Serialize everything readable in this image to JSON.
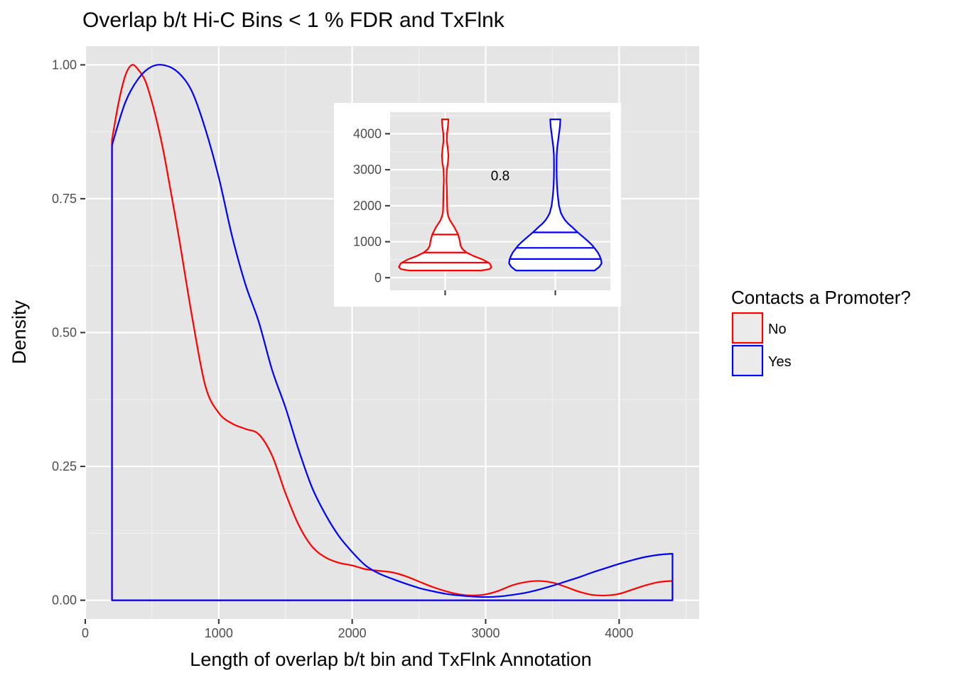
{
  "chart_data": [
    {
      "type": "line",
      "subtype": "density",
      "title": "Overlap b/t Hi-C Bins < 1 % FDR and TxFlnk",
      "xlabel": "Length of overlap b/t bin and TxFlnk Annotation",
      "ylabel": "Density",
      "xlim": [
        0,
        4600
      ],
      "ylim": [
        -0.035,
        1.035
      ],
      "x_ticks": [
        0,
        1000,
        2000,
        3000,
        4000
      ],
      "y_ticks": [
        0.0,
        0.25,
        0.5,
        0.75,
        1.0
      ],
      "y_tick_labels": [
        "0.00",
        "0.25",
        "0.50",
        "0.75",
        "1.00"
      ],
      "grid": true,
      "background": "#e5e5e5",
      "legend": {
        "title": "Contacts a Promoter?",
        "position": "right",
        "items": [
          {
            "label": "No",
            "color": "#ff0000"
          },
          {
            "label": "Yes",
            "color": "#0000ff"
          }
        ]
      },
      "series": [
        {
          "name": "No",
          "color": "#ff0000",
          "x": [
            200,
            250,
            300,
            350,
            400,
            450,
            500,
            550,
            600,
            700,
            800,
            900,
            1000,
            1100,
            1200,
            1300,
            1400,
            1500,
            1600,
            1700,
            1800,
            1900,
            2000,
            2100,
            2200,
            2300,
            2400,
            2500,
            2600,
            2700,
            2800,
            2900,
            3000,
            3100,
            3200,
            3300,
            3400,
            3500,
            3600,
            3700,
            3800,
            3900,
            4000,
            4100,
            4200,
            4300,
            4400
          ],
          "y": [
            0.86,
            0.93,
            0.98,
            1.0,
            0.99,
            0.97,
            0.93,
            0.88,
            0.82,
            0.68,
            0.53,
            0.4,
            0.35,
            0.33,
            0.32,
            0.31,
            0.27,
            0.2,
            0.14,
            0.1,
            0.08,
            0.07,
            0.065,
            0.058,
            0.055,
            0.052,
            0.045,
            0.035,
            0.025,
            0.017,
            0.011,
            0.009,
            0.011,
            0.018,
            0.028,
            0.034,
            0.036,
            0.033,
            0.025,
            0.016,
            0.01,
            0.009,
            0.012,
            0.02,
            0.028,
            0.034,
            0.036
          ]
        },
        {
          "name": "Yes",
          "color": "#0000ff",
          "x": [
            200,
            300,
            400,
            500,
            600,
            700,
            800,
            900,
            1000,
            1100,
            1200,
            1300,
            1400,
            1500,
            1600,
            1700,
            1800,
            1900,
            2000,
            2100,
            2200,
            2300,
            2400,
            2500,
            2600,
            2700,
            2800,
            2900,
            3000,
            3100,
            3200,
            3300,
            3400,
            3500,
            3600,
            3700,
            3800,
            3900,
            4000,
            4100,
            4200,
            4300,
            4400
          ],
          "y": [
            0.85,
            0.93,
            0.975,
            0.997,
            0.999,
            0.985,
            0.95,
            0.88,
            0.79,
            0.68,
            0.59,
            0.52,
            0.43,
            0.36,
            0.28,
            0.21,
            0.16,
            0.12,
            0.09,
            0.065,
            0.05,
            0.04,
            0.031,
            0.023,
            0.017,
            0.012,
            0.009,
            0.007,
            0.006,
            0.007,
            0.01,
            0.014,
            0.02,
            0.027,
            0.035,
            0.043,
            0.052,
            0.06,
            0.068,
            0.075,
            0.081,
            0.085,
            0.087
          ]
        }
      ]
    },
    {
      "type": "violin",
      "role": "inset",
      "ylim": [
        -350,
        4600
      ],
      "y_ticks": [
        0,
        1000,
        2000,
        3000,
        4000
      ],
      "y_tick_labels": [
        "0",
        "1000",
        "2000",
        "3000",
        "4000"
      ],
      "grid": true,
      "background": "#e5e5e5",
      "annotation": "0.8",
      "groups": [
        {
          "name": "No",
          "color": "#ff0000",
          "quantiles": [
            420,
            700,
            1200
          ],
          "profile_y": [
            200,
            240,
            300,
            400,
            500,
            600,
            700,
            800,
            900,
            1000,
            1100,
            1200,
            1300,
            1400,
            1500,
            1600,
            1700,
            1800,
            1900,
            2000,
            2200,
            2500,
            2700,
            3000,
            3200,
            3400,
            3600,
            3800,
            4000,
            4200,
            4400
          ],
          "profile_w": [
            0.78,
            0.96,
            1.0,
            0.96,
            0.82,
            0.62,
            0.46,
            0.37,
            0.33,
            0.32,
            0.3,
            0.28,
            0.24,
            0.2,
            0.15,
            0.1,
            0.07,
            0.05,
            0.045,
            0.043,
            0.04,
            0.035,
            0.028,
            0.035,
            0.06,
            0.07,
            0.055,
            0.035,
            0.04,
            0.06,
            0.07
          ]
        },
        {
          "name": "Yes",
          "color": "#0000ff",
          "quantiles": [
            520,
            830,
            1260
          ],
          "profile_y": [
            200,
            300,
            400,
            500,
            600,
            700,
            800,
            900,
            1000,
            1100,
            1200,
            1300,
            1400,
            1500,
            1600,
            1700,
            1800,
            1900,
            2000,
            2200,
            2400,
            2600,
            2800,
            3000,
            3200,
            3400,
            3600,
            3800,
            4000,
            4200,
            4400
          ],
          "profile_w": [
            0.85,
            0.95,
            1.0,
            0.99,
            0.96,
            0.92,
            0.86,
            0.8,
            0.72,
            0.63,
            0.54,
            0.45,
            0.37,
            0.28,
            0.21,
            0.16,
            0.12,
            0.1,
            0.08,
            0.06,
            0.045,
            0.035,
            0.03,
            0.028,
            0.028,
            0.03,
            0.04,
            0.06,
            0.08,
            0.1,
            0.11
          ]
        }
      ]
    }
  ]
}
